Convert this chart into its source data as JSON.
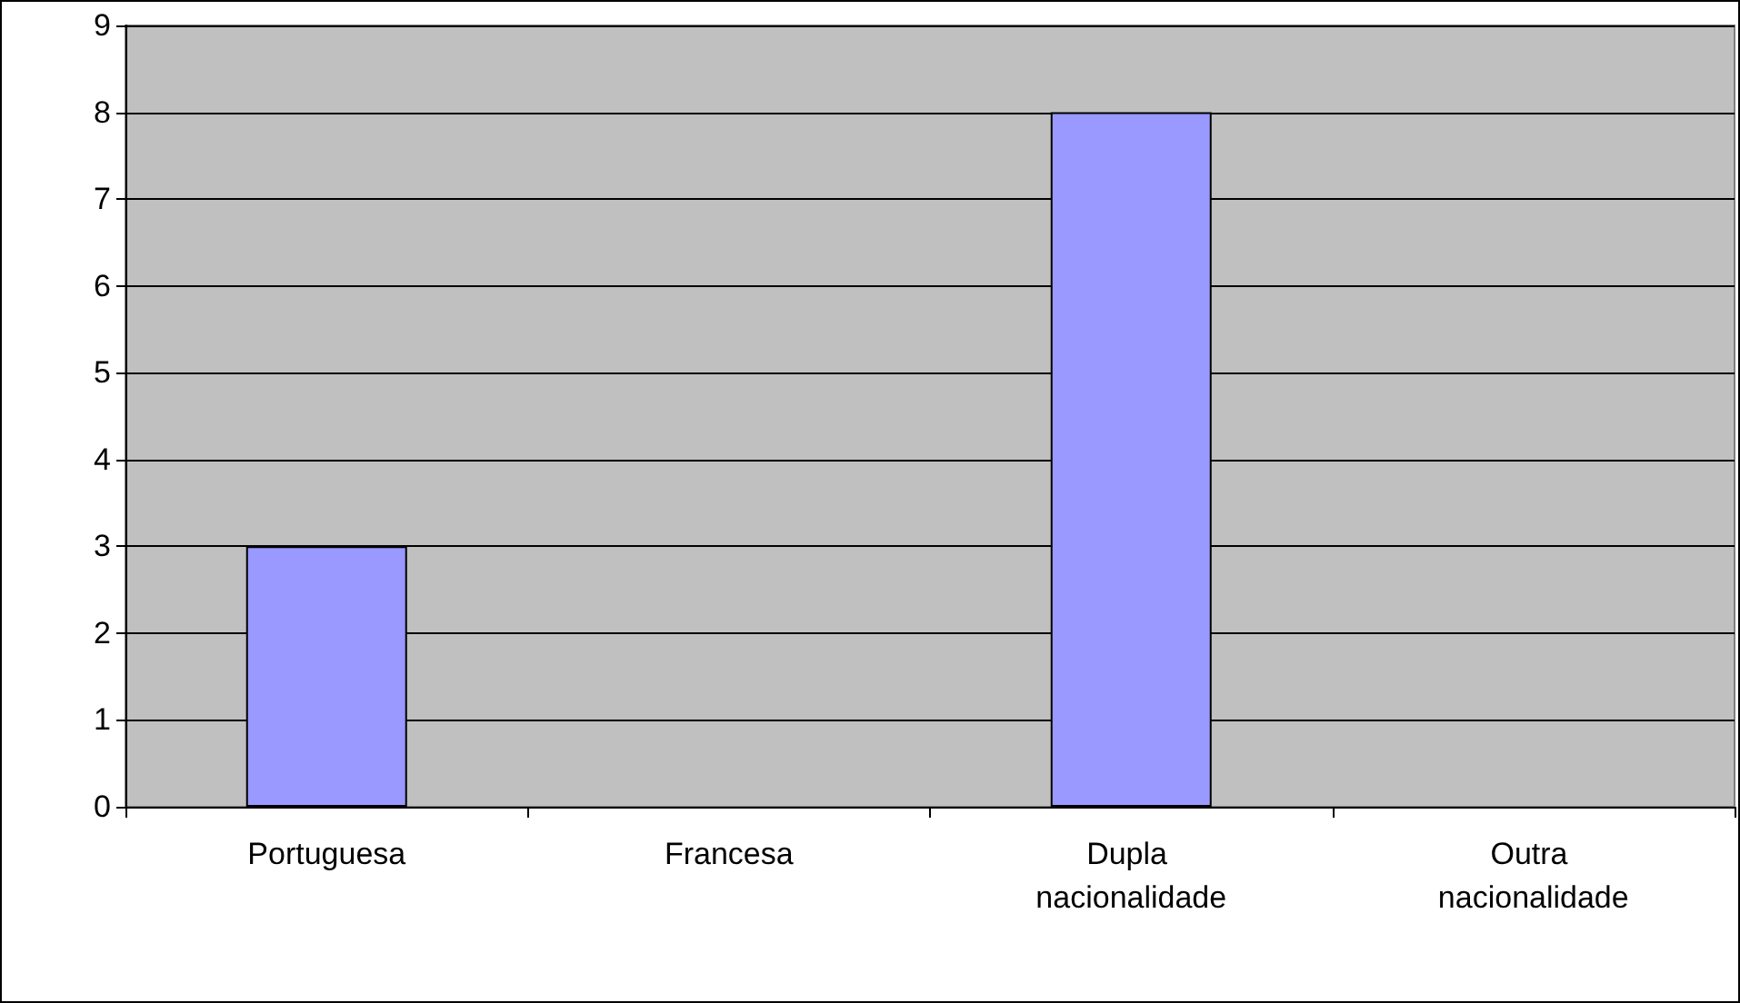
{
  "chart_data": {
    "type": "bar",
    "categories": [
      "Portuguesa",
      "Francesa",
      "Dupla nacionalidade",
      "Outra nacionalidade"
    ],
    "values": [
      3,
      0,
      8,
      0
    ],
    "color": "#9999ff",
    "ylim": [
      0,
      9
    ],
    "yticks": [
      0,
      1,
      2,
      3,
      4,
      5,
      6,
      7,
      8,
      9
    ],
    "grid": "y"
  }
}
